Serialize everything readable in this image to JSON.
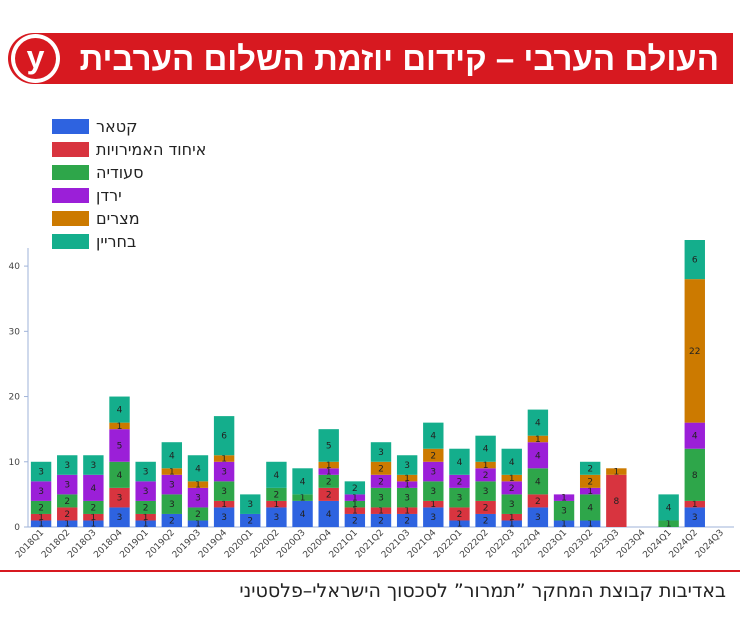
{
  "header": {
    "title": "העולם הערבי – קידום יוזמת השלום הערבית",
    "logo_letter": "y"
  },
  "footer": {
    "credit": "באדיבות קבוצת המחקר ”תמרור” לסכסוך הישראלי–פלסטיני"
  },
  "chart_data": {
    "type": "bar",
    "stacked": true,
    "title": "העולם הערבי – קידום יוזמת השלום הערבית",
    "xlabel": "",
    "ylabel": "",
    "ylim": [
      0,
      44
    ],
    "yticks": [
      0,
      10,
      20,
      30,
      40
    ],
    "legend_position": "top-left",
    "categories": [
      "2018Q1",
      "2018Q2",
      "2018Q3",
      "2018Q4",
      "2019Q1",
      "2019Q2",
      "2019Q3",
      "2019Q4",
      "2020Q1",
      "2020Q2",
      "2020Q3",
      "2020Q4",
      "2021Q1",
      "2021Q2",
      "2021Q3",
      "2021Q4",
      "2022Q1",
      "2022Q2",
      "2022Q3",
      "2022Q4",
      "2023Q1",
      "2023Q2",
      "2023Q3",
      "2023Q4",
      "2024Q1",
      "2024Q2",
      "2024Q3"
    ],
    "series": [
      {
        "name": "קטאר",
        "color": "#2e63e0",
        "values": [
          1,
          1,
          1,
          3,
          1,
          2,
          1,
          3,
          2,
          3,
          4,
          4,
          2,
          2,
          2,
          3,
          1,
          2,
          1,
          3,
          1,
          1,
          0,
          0,
          0,
          3,
          0
        ]
      },
      {
        "name": "איחוד האמירויות",
        "color": "#d8343f",
        "values": [
          1,
          2,
          1,
          3,
          1,
          0,
          0,
          1,
          0,
          1,
          0,
          2,
          1,
          1,
          1,
          1,
          2,
          2,
          1,
          2,
          0,
          0,
          8,
          0,
          0,
          1,
          0
        ]
      },
      {
        "name": "סעודיה",
        "color": "#2ea64a",
        "values": [
          2,
          2,
          2,
          4,
          2,
          3,
          2,
          3,
          0,
          2,
          1,
          2,
          1,
          3,
          3,
          3,
          3,
          3,
          3,
          4,
          3,
          4,
          0,
          0,
          1,
          8,
          0
        ]
      },
      {
        "name": "ירדן",
        "color": "#9b1fd8",
        "values": [
          3,
          3,
          4,
          5,
          3,
          3,
          3,
          3,
          0,
          0,
          0,
          1,
          1,
          2,
          1,
          3,
          2,
          2,
          2,
          4,
          1,
          1,
          0,
          0,
          0,
          4,
          0
        ]
      },
      {
        "name": "מצרים",
        "color": "#cc7a00",
        "values": [
          0,
          0,
          0,
          1,
          0,
          1,
          1,
          1,
          0,
          0,
          0,
          1,
          0,
          2,
          1,
          2,
          0,
          1,
          1,
          1,
          0,
          2,
          1,
          0,
          0,
          22,
          0
        ]
      },
      {
        "name": "בחריין",
        "color": "#14ae8c",
        "values": [
          3,
          3,
          3,
          4,
          3,
          4,
          4,
          6,
          3,
          4,
          4,
          5,
          2,
          3,
          3,
          4,
          4,
          4,
          4,
          4,
          0,
          2,
          0,
          0,
          4,
          6,
          0
        ]
      }
    ]
  }
}
